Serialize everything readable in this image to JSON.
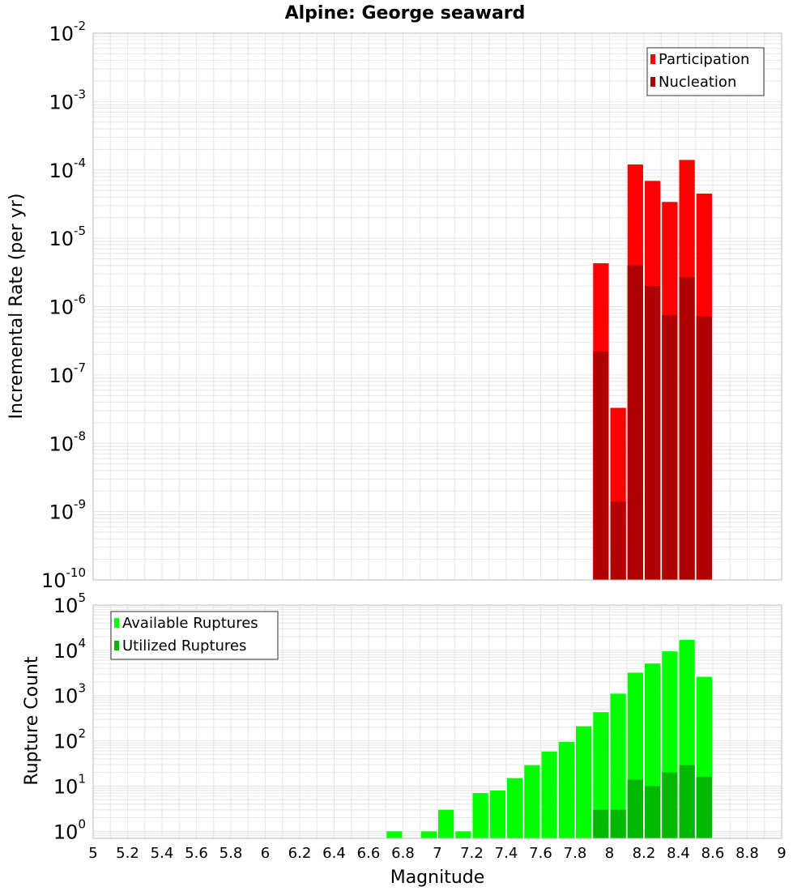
{
  "title": "Alpine: George seaward",
  "xlabel": "Magnitude",
  "colors": {
    "participation": "#ff0000",
    "nucleation": "#b00000",
    "available": "#00ff00",
    "utilized": "#00b800",
    "bar_edge": "#ffffff",
    "grid": "#e6e6e6",
    "frame": "#bbbbbb"
  },
  "x_ticks": [
    "5",
    "5.2",
    "5.4",
    "5.6",
    "5.8",
    "6",
    "6.2",
    "6.4",
    "6.6",
    "6.8",
    "7",
    "7.2",
    "7.4",
    "7.6",
    "7.8",
    "8",
    "8.2",
    "8.4",
    "8.6",
    "8.8",
    "9"
  ],
  "chart_data": [
    {
      "type": "bar",
      "title": "Alpine: George seaward",
      "ylabel": "Incremental Rate (per yr)",
      "xlabel": "",
      "y_scale": "log",
      "xlim": [
        5,
        9
      ],
      "ylim": [
        1e-10,
        0.01
      ],
      "y_ticks": [
        {
          "base": "10",
          "exp": "-10"
        },
        {
          "base": "10",
          "exp": "-9"
        },
        {
          "base": "10",
          "exp": "-8"
        },
        {
          "base": "10",
          "exp": "-7"
        },
        {
          "base": "10",
          "exp": "-6"
        },
        {
          "base": "10",
          "exp": "-5"
        },
        {
          "base": "10",
          "exp": "-4"
        },
        {
          "base": "10",
          "exp": "-3"
        },
        {
          "base": "10",
          "exp": "-2"
        }
      ],
      "grid": true,
      "legend_position": "top-right",
      "bar_width": 0.1,
      "overlay": true,
      "x": [
        7.95,
        8.05,
        8.15,
        8.25,
        8.35,
        8.45,
        8.55
      ],
      "series": [
        {
          "name": "Participation",
          "values": [
            4.3e-06,
            3.3e-08,
            0.00012,
            6.9e-05,
            3.4e-05,
            0.00014,
            4.5e-05
          ]
        },
        {
          "name": "Nucleation",
          "values": [
            2.2e-07,
            1.4e-09,
            4e-06,
            2e-06,
            7.5e-07,
            2.7e-06,
            7.2e-07
          ]
        }
      ]
    },
    {
      "type": "bar",
      "ylabel": "Rupture Count",
      "xlabel": "Magnitude",
      "y_scale": "log",
      "xlim": [
        5,
        9
      ],
      "ylim": [
        0.7,
        100000
      ],
      "y_ticks": [
        {
          "base": "10",
          "exp": "0"
        },
        {
          "base": "10",
          "exp": "1"
        },
        {
          "base": "10",
          "exp": "2"
        },
        {
          "base": "10",
          "exp": "3"
        },
        {
          "base": "10",
          "exp": "4"
        },
        {
          "base": "10",
          "exp": "5"
        }
      ],
      "grid": true,
      "legend_position": "top-left",
      "bar_width": 0.1,
      "overlay": true,
      "series": [
        {
          "name": "Available Ruptures",
          "x": [
            6.75,
            6.95,
            7.05,
            7.15,
            7.25,
            7.35,
            7.45,
            7.55,
            7.65,
            7.75,
            7.85,
            7.95,
            8.05,
            8.15,
            8.25,
            8.35,
            8.45,
            8.55
          ],
          "values": [
            1,
            1,
            3,
            1,
            7,
            8,
            15,
            29,
            58,
            95,
            210,
            430,
            1100,
            3200,
            5100,
            9500,
            17000,
            2600
          ]
        },
        {
          "name": "Utilized Ruptures",
          "x": [
            7.95,
            8.05,
            8.15,
            8.25,
            8.35,
            8.45,
            8.55
          ],
          "values": [
            3,
            3,
            14,
            10,
            20,
            29,
            16
          ]
        }
      ]
    }
  ]
}
